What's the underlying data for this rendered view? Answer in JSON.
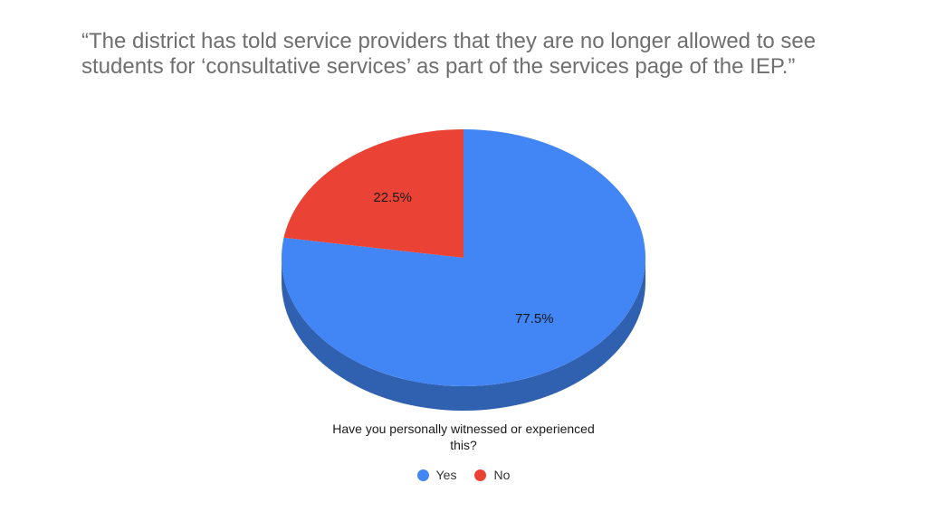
{
  "title_lines": [
    "“The district has told service providers that they are no longer allowed to see",
    "students for ‘consultative services’ as part of the services page of the IEP.”"
  ],
  "chart_data": {
    "type": "pie",
    "title": "",
    "categories": [
      "Yes",
      "No"
    ],
    "values": [
      77.5,
      22.5
    ],
    "labels": [
      "77.5%",
      "22.5%"
    ],
    "colors": [
      "#4285F4",
      "#EA4335"
    ],
    "caption": "Have you personally witnessed or experienced this?",
    "legend": {
      "position": "bottom",
      "entries": [
        {
          "label": "Yes",
          "color": "#4285F4"
        },
        {
          "label": "No",
          "color": "#EA4335"
        }
      ]
    }
  }
}
